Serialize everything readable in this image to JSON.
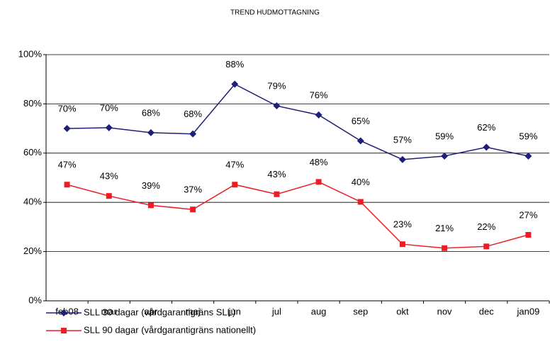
{
  "chart_data": {
    "type": "line",
    "title": "TREND HUDMOTTAGNING",
    "categories": [
      "feb08",
      "mar",
      "apr",
      "maj",
      "jun",
      "jul",
      "aug",
      "sep",
      "okt",
      "nov",
      "dec",
      "jan09"
    ],
    "series": [
      {
        "name": "SLL 30 dagar (vårdgarantigräns SLL)",
        "color": "#1f1f7a",
        "marker": "diamond",
        "values": [
          70,
          70.3,
          68.3,
          67.8,
          88,
          79.2,
          75.5,
          65,
          57.4,
          58.8,
          62.4,
          58.8
        ],
        "value_labels": [
          "70%",
          "70%",
          "68%",
          "68%",
          "88%",
          "79%",
          "76%",
          "65%",
          "57%",
          "59%",
          "62%",
          "59%"
        ]
      },
      {
        "name": "SLL 90 dagar (vårdgarantigräns nationellt)",
        "color": "#ee1c25",
        "marker": "square",
        "values": [
          47.2,
          42.6,
          38.8,
          37.1,
          47.2,
          43.3,
          48.3,
          40.2,
          23,
          21.4,
          22.1,
          26.8
        ],
        "value_labels": [
          "47%",
          "43%",
          "39%",
          "37%",
          "47%",
          "43%",
          "48%",
          "40%",
          "23%",
          "21%",
          "22%",
          "27%"
        ]
      }
    ],
    "ylim": [
      0,
      100
    ],
    "yticks": [
      {
        "value": 0,
        "label": "0%"
      },
      {
        "value": 20,
        "label": "20%"
      },
      {
        "value": 40,
        "label": "40%"
      },
      {
        "value": 60,
        "label": "60%"
      },
      {
        "value": 80,
        "label": "80%"
      },
      {
        "value": 100,
        "label": "100%"
      }
    ],
    "grid": true,
    "legend": "bottom"
  }
}
